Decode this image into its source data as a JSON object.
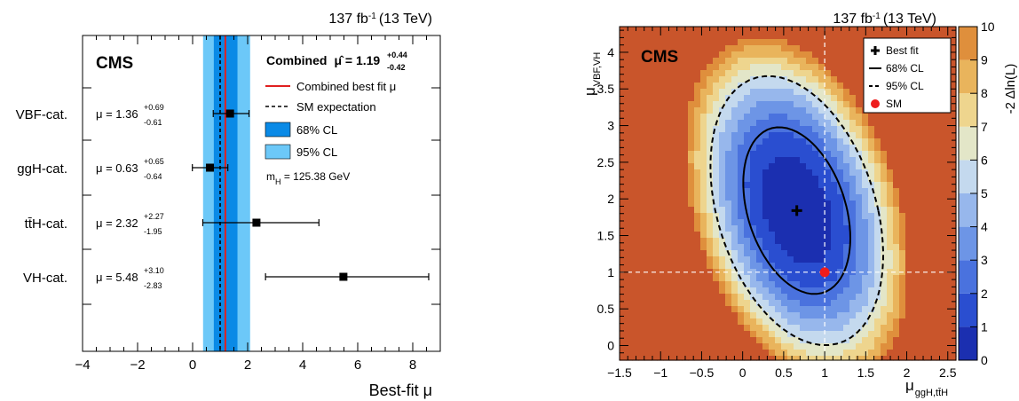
{
  "chart_data": [
    {
      "type": "scatter",
      "subtype": "error-bar",
      "header": {
        "lumi": "137 fb",
        "lumi_sup": "-1",
        "energy": "(13 TeV)"
      },
      "badge": "CMS",
      "xlabel": "Best-fit μ",
      "xlim": [
        -4,
        9
      ],
      "x_ticks": [
        -4,
        -2,
        0,
        2,
        4,
        6,
        8
      ],
      "categories": [
        "VBF-cat.",
        "ggH-cat.",
        "tt̄H-cat.",
        "VH-cat."
      ],
      "points": [
        {
          "category": "VBF-cat.",
          "mu": 1.36,
          "plus": 0.69,
          "minus": 0.61,
          "label": "μ = 1.36",
          "label_sup": "+0.69",
          "label_sub": "-0.61"
        },
        {
          "category": "ggH-cat.",
          "mu": 0.63,
          "plus": 0.65,
          "minus": 0.64,
          "label": "μ = 0.63",
          "label_sup": "+0.65",
          "label_sub": "-0.64"
        },
        {
          "category": "tt̄H-cat.",
          "mu": 2.32,
          "plus": 2.27,
          "minus": 1.95,
          "label": "μ = 2.32",
          "label_sup": "+2.27",
          "label_sub": "-1.95"
        },
        {
          "category": "VH-cat.",
          "mu": 5.48,
          "plus": 3.1,
          "minus": 2.83,
          "label": "μ = 5.48",
          "label_sup": "+3.10",
          "label_sub": "-2.83"
        }
      ],
      "combined": {
        "mu": 1.19,
        "plus": 0.44,
        "minus": 0.42,
        "band68": [
          0.77,
          1.63
        ],
        "band95": [
          0.38,
          2.09
        ],
        "label": "Combined",
        "label_hat": "μ̂ = 1.19",
        "label_sup": "+0.44",
        "label_sub": "-0.42"
      },
      "sm_expectation": 1,
      "legend": [
        {
          "label": "Combined best fit μ",
          "style": "red-line"
        },
        {
          "label": "SM expectation",
          "style": "dashed-line"
        },
        {
          "label": "68% CL",
          "style": "box-68"
        },
        {
          "label": "95% CL",
          "style": "box-95"
        }
      ],
      "mass_note": {
        "prefix": "m",
        "sub": "H",
        "suffix": " = 125.38 GeV"
      },
      "colors": {
        "band68": "#0a8ae6",
        "band95": "#6cc8f8",
        "best_fit": "#e02020",
        "marker": "#000000"
      }
    },
    {
      "type": "heatmap",
      "subtype": "likelihood-scan",
      "header": {
        "lumi": "137 fb",
        "lumi_sup": "-1",
        "energy": "(13 TeV)"
      },
      "badge": "CMS",
      "xlabel": "μ",
      "xlabel_sub": "ggH,tt̄H",
      "ylabel": "μ",
      "ylabel_sub": "VBF,VH",
      "zlabel": "-2 Δln(L)",
      "xlim": [
        -1.5,
        2.6
      ],
      "ylim": [
        -0.2,
        4.35
      ],
      "zlim": [
        0,
        10
      ],
      "x_ticks": [
        -1.5,
        -1,
        -0.5,
        0,
        0.5,
        1,
        1.5,
        2,
        2.5
      ],
      "y_ticks": [
        0,
        0.5,
        1,
        1.5,
        2,
        2.5,
        3,
        3.5,
        4
      ],
      "z_ticks": [
        0,
        1,
        2,
        3,
        4,
        5,
        6,
        7,
        8,
        9,
        10
      ],
      "best_fit": {
        "x": 0.66,
        "y": 1.84
      },
      "sm": {
        "x": 1,
        "y": 1
      },
      "covariance": {
        "sx": 0.43,
        "sy": 0.75,
        "rho": -0.33
      },
      "contour_levels": {
        "cl68": 2.3,
        "cl95": 5.99
      },
      "legend": [
        {
          "label": "Best fit",
          "style": "cross"
        },
        {
          "label": "68% CL",
          "style": "solid-line"
        },
        {
          "label": "95% CL",
          "style": "dashed-line"
        },
        {
          "label": "SM",
          "style": "red-dot"
        }
      ],
      "palette": [
        "#1b2fb0",
        "#2a4ed0",
        "#4a72de",
        "#6d95e6",
        "#97b7ec",
        "#c4d9ee",
        "#e3e6c8",
        "#eed58e",
        "#e9b45c",
        "#df8f3c",
        "#c9552b"
      ]
    }
  ]
}
